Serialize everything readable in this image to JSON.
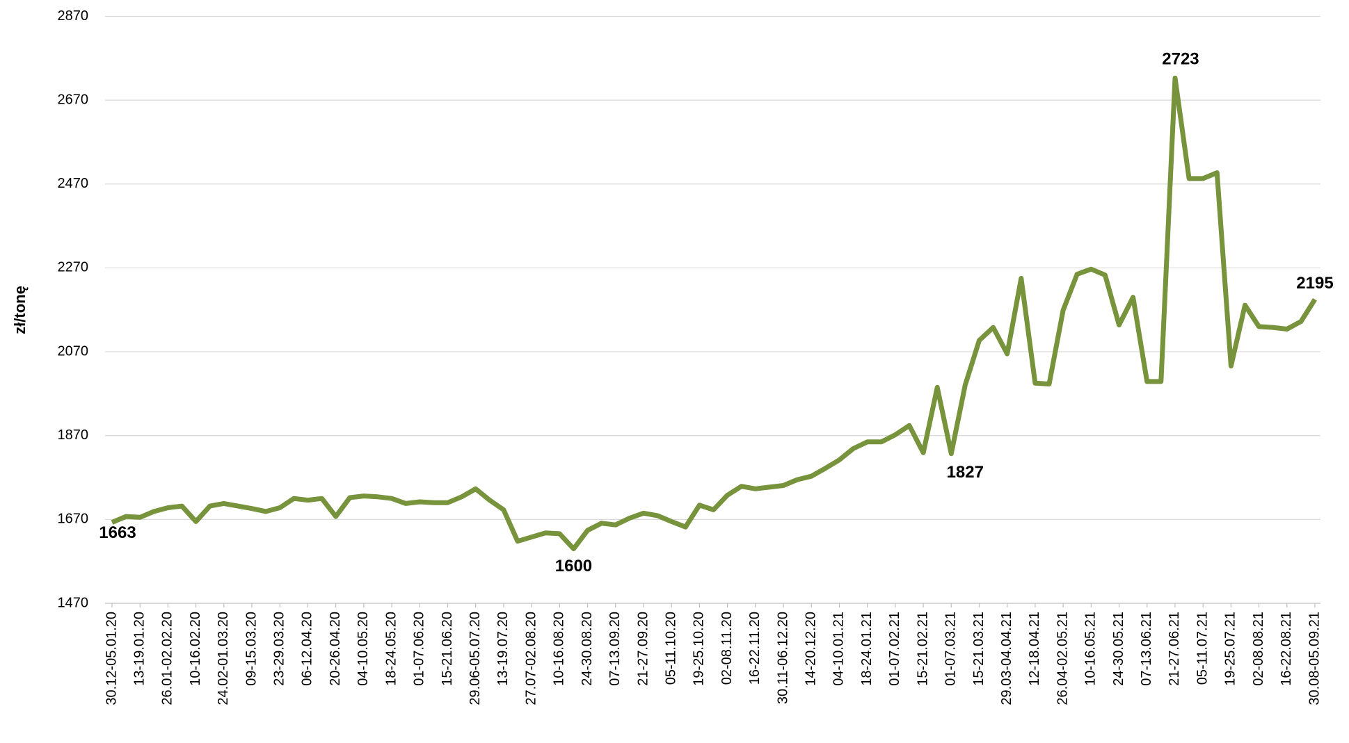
{
  "chart_data": {
    "type": "line",
    "y_label": "zł/tonę",
    "categories": [
      "30.12-05.01.20",
      null,
      "13-19.01.20",
      null,
      "26.01-02.02.20",
      null,
      "10-16.02.20",
      null,
      "24.02-01.03.20",
      null,
      "09-15.03.20",
      null,
      "23-29.03.20",
      null,
      "06-12.04.20",
      null,
      "20-26.04.20",
      null,
      "04-10.05.20",
      null,
      "18-24.05.20",
      null,
      "01-07.06.20",
      null,
      "15-21.06.20",
      null,
      "29.06-05.07.20",
      null,
      "13-19.07.20",
      null,
      "27.07-02.08.20",
      null,
      "10-16.08.20",
      null,
      "24-30.08.20",
      null,
      "07-13.09.20",
      null,
      "21-27.09.20",
      null,
      "05-11.10.20",
      null,
      "19-25.10.20",
      null,
      "02-08.11.20",
      null,
      "16-22.11.20",
      null,
      "30.11-06.12.20",
      null,
      "14-20.12.20",
      null,
      "04-10.01.21",
      null,
      "18-24.01.21",
      null,
      "01-07.02.21",
      null,
      "15-21.02.21",
      null,
      "01-07.03.21",
      null,
      "15-21.03.21",
      null,
      "29.03-04.04.21",
      null,
      "12-18.04.21",
      null,
      "26.04-02.05.21",
      null,
      "10-16.05.21",
      null,
      "24-30.05.21",
      null,
      "07-13.06.21",
      null,
      "21-27.06.21",
      null,
      "05-11.07.21",
      null,
      "19-25.07.21",
      null,
      "02-08.08.21",
      null,
      "16-22.08.21",
      null,
      "30.08-05.09.21"
    ],
    "series": [
      {
        "name": "zł/tonę",
        "color": "#77933c",
        "values": [
          1663,
          1677,
          1675,
          1689,
          1698,
          1702,
          1665,
          1702,
          1708,
          1702,
          1696,
          1689,
          1698,
          1720,
          1716,
          1720,
          1677,
          1722,
          1726,
          1724,
          1720,
          1708,
          1712,
          1710,
          1710,
          1724,
          1743,
          1716,
          1693,
          1618,
          1628,
          1638,
          1636,
          1600,
          1644,
          1661,
          1657,
          1673,
          1685,
          1679,
          1665,
          1652,
          1704,
          1693,
          1728,
          1749,
          1743,
          1747,
          1751,
          1765,
          1773,
          1792,
          1812,
          1839,
          1855,
          1855,
          1872,
          1894,
          1829,
          1985,
          1827,
          1991,
          2097,
          2128,
          2065,
          2245,
          1995,
          1993,
          2169,
          2255,
          2267,
          2253,
          2134,
          2200,
          1999,
          1999,
          2723,
          2483,
          2483,
          2497,
          2036,
          2181,
          2130,
          2128,
          2124,
          2142,
          2195
        ]
      }
    ],
    "labeled_points": [
      0,
      33,
      60,
      76,
      86
    ],
    "ylim": [
      1470,
      2870
    ],
    "yticks": [
      1470,
      1670,
      1870,
      2070,
      2270,
      2470,
      2670,
      2870
    ],
    "grid": true
  }
}
